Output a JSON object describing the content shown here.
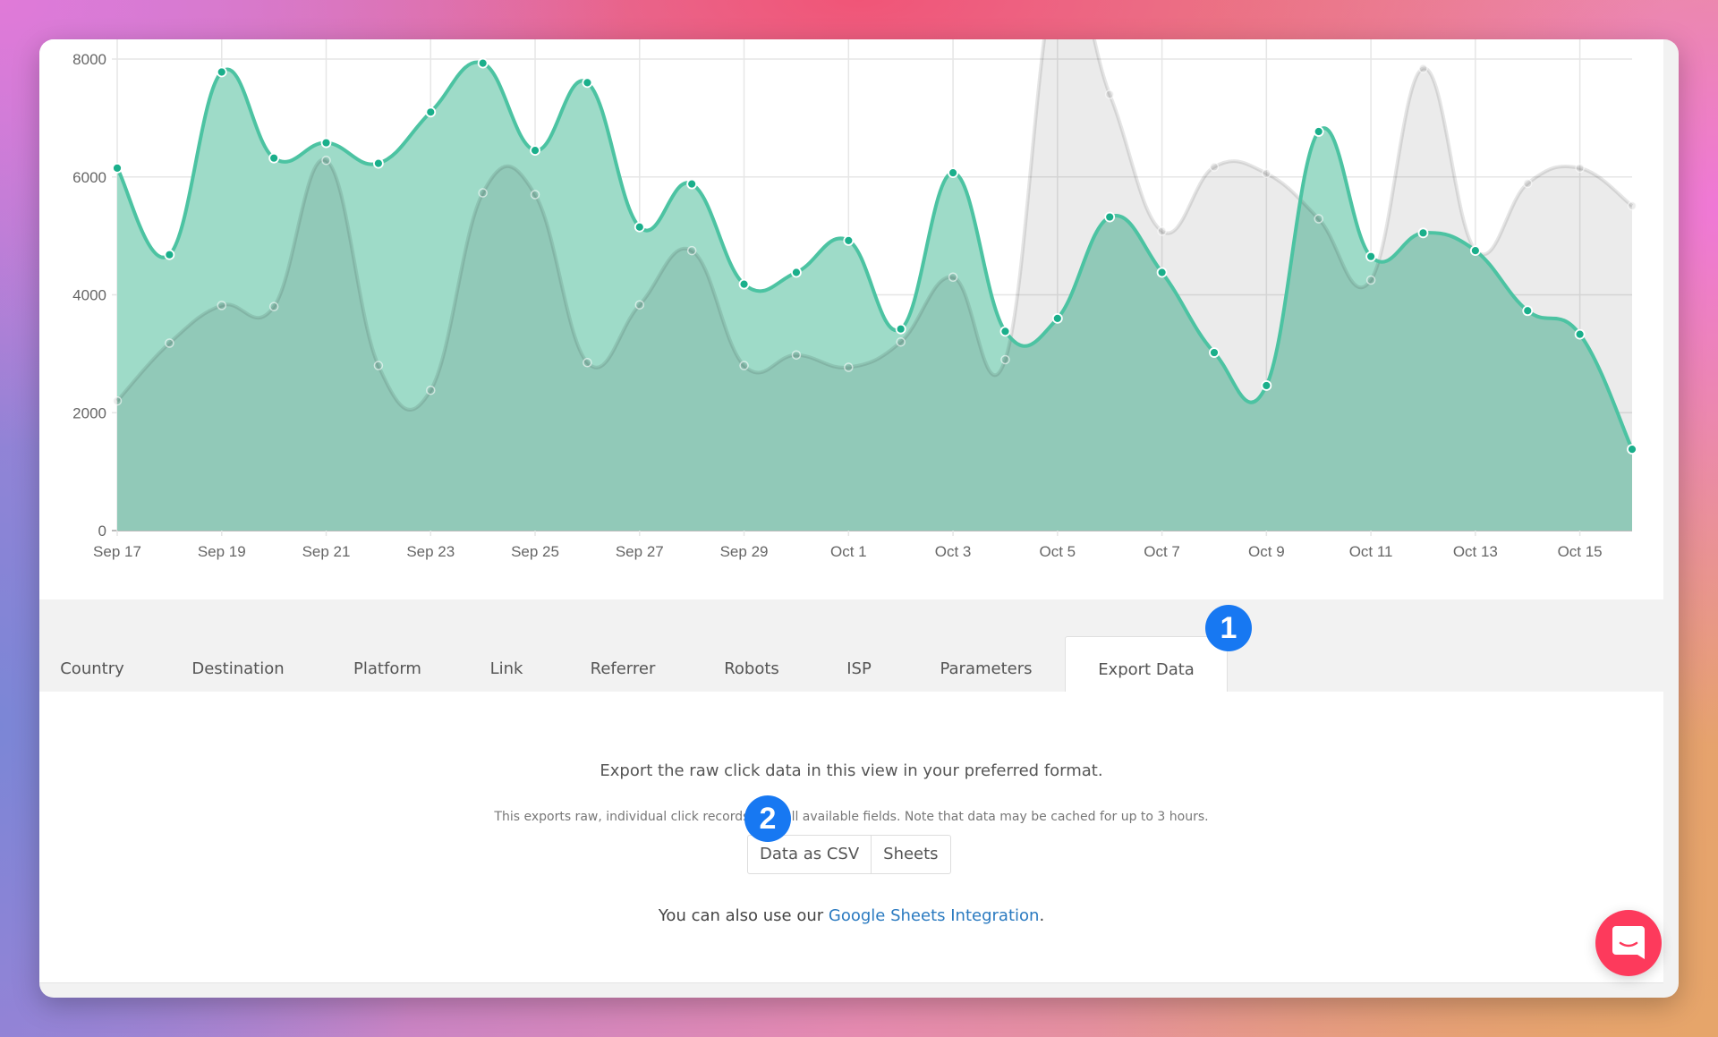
{
  "chart_data": {
    "type": "area",
    "categories": [
      "Sep 17",
      "Sep 18",
      "Sep 19",
      "Sep 20",
      "Sep 21",
      "Sep 22",
      "Sep 23",
      "Sep 24",
      "Sep 25",
      "Sep 26",
      "Sep 27",
      "Sep 28",
      "Sep 29",
      "Sep 30",
      "Oct 1",
      "Oct 2",
      "Oct 3",
      "Oct 4",
      "Oct 5",
      "Oct 6",
      "Oct 7",
      "Oct 8",
      "Oct 9",
      "Oct 10",
      "Oct 11",
      "Oct 12",
      "Oct 13",
      "Oct 14",
      "Oct 15",
      "Oct 16"
    ],
    "x_tick_labels": [
      "Sep 17",
      "Sep 19",
      "Sep 21",
      "Sep 23",
      "Sep 25",
      "Sep 27",
      "Sep 29",
      "Oct 1",
      "Oct 3",
      "Oct 5",
      "Oct 7",
      "Oct 9",
      "Oct 11",
      "Oct 13",
      "Oct 15"
    ],
    "y_tick_labels": [
      "0",
      "2000",
      "4000",
      "6000",
      "8000"
    ],
    "ylim": [
      0,
      8000
    ],
    "grid": true,
    "series": [
      {
        "color": "#1aaf8b",
        "fill": "#9edbc8",
        "values": [
          6150,
          4680,
          7780,
          6320,
          6580,
          6230,
          7100,
          7930,
          6450,
          7600,
          5150,
          5880,
          4180,
          4380,
          4920,
          3420,
          6070,
          3380,
          3600,
          5320,
          4380,
          3020,
          2460,
          6770,
          4650,
          5050,
          4750,
          3730,
          3330,
          1380
        ]
      },
      {
        "color": "#d6d6d6",
        "fill": "rgba(0,0,0,0.08)",
        "values": [
          2200,
          3180,
          3820,
          3800,
          6280,
          2800,
          2380,
          5730,
          5700,
          2850,
          3830,
          4750,
          2800,
          2980,
          2770,
          3200,
          4300,
          2900,
          9500,
          7400,
          5080,
          6170,
          6060,
          5290,
          4250,
          7840,
          4760,
          5890,
          6150,
          5510
        ]
      }
    ]
  },
  "tabs": [
    {
      "label": "Country"
    },
    {
      "label": "Destination"
    },
    {
      "label": "Platform"
    },
    {
      "label": "Link"
    },
    {
      "label": "Referrer"
    },
    {
      "label": "Robots"
    },
    {
      "label": "ISP"
    },
    {
      "label": "Parameters"
    },
    {
      "label": "Export Data",
      "active": true
    }
  ],
  "export": {
    "heading": "Export the raw click data in this view in your preferred format.",
    "note": "This exports raw, individual click records with all available fields. Note that data may be cached for up to 3 hours.",
    "csv_button": "Data as CSV",
    "sheets_button": "Sheets",
    "also_prefix": "You can also use our ",
    "also_link": "Google Sheets Integration",
    "also_suffix": "."
  },
  "annotations": {
    "badge_1": "1",
    "badge_2": "2"
  },
  "chat": {
    "icon": "chat-bubble-smile-icon",
    "color": "#fd3a5c"
  }
}
